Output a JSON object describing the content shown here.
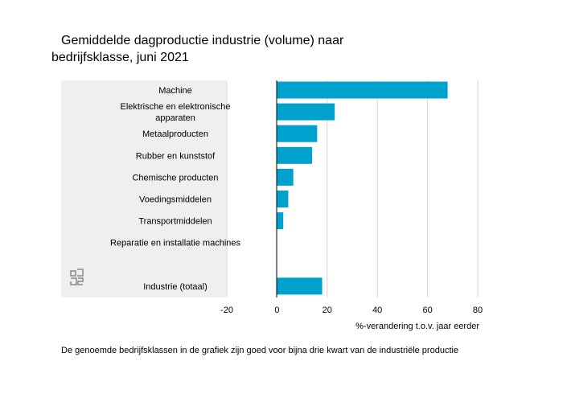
{
  "chart_data": {
    "type": "bar",
    "orientation": "horizontal",
    "title_line1": "Gemiddelde dagproductie industrie (volume) naar",
    "title_line2": "bedrijfsklasse, juni 2021",
    "categories": [
      [
        "Machine"
      ],
      [
        "Elektrische en elektronische",
        "apparaten"
      ],
      [
        "Metaalproducten"
      ],
      [
        "Rubber en kunststof"
      ],
      [
        "Chemische producten"
      ],
      [
        "Voedingsmiddelen"
      ],
      [
        "Transportmiddelen"
      ],
      [
        "Reparatie en installatie machines"
      ],
      [],
      [
        "Industrie (totaal)"
      ]
    ],
    "values": [
      68,
      23,
      16,
      14,
      6.5,
      4.5,
      2.5,
      0,
      null,
      18
    ],
    "xlabel": "%-verandering t.o.v. jaar eerder",
    "xlim": [
      -20,
      80
    ],
    "xticks": [
      -20,
      0,
      20,
      40,
      60,
      80
    ],
    "grid": true,
    "bar_color": "#00a1cd",
    "label_panel_color": "#efefef"
  },
  "footnote": "De genoemde bedrijfsklassen in de grafiek zijn goed voor bijna drie kwart van de industriële productie",
  "logo": "cbs-logo"
}
